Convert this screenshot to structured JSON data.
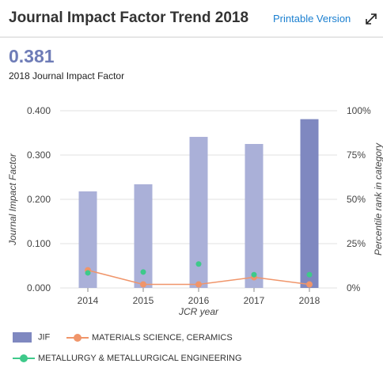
{
  "header": {
    "title": "Journal Impact Factor Trend 2018",
    "printable_label": "Printable Version",
    "expand_icon": "expand-arrows-icon"
  },
  "summary": {
    "value": "0.381",
    "label": "2018 Journal Impact Factor"
  },
  "colors": {
    "jif_bar": "#aab0d8",
    "jif_bar_current": "#7f88c0",
    "materials": "#f0956a",
    "metallurgy": "#3ec98a",
    "grid": "#e0e0e0",
    "axis_text": "#444444"
  },
  "chart_data": {
    "type": "bar",
    "title": "",
    "xlabel": "JCR year",
    "ylabel": "Journal Impact Factor",
    "y2label": "Percentile rank in category",
    "categories": [
      "2014",
      "2015",
      "2016",
      "2017",
      "2018"
    ],
    "ylim": [
      0,
      0.4
    ],
    "yticks": [
      "0.000",
      "0.100",
      "0.200",
      "0.300",
      "0.400"
    ],
    "y2lim": [
      0,
      100
    ],
    "y2ticks": [
      "0%",
      "25%",
      "50%",
      "75%",
      "100%"
    ],
    "grid": true,
    "legend_position": "bottom-left",
    "series": [
      {
        "name": "JIF",
        "kind": "bar",
        "axis": "left",
        "values": [
          0.218,
          0.234,
          0.341,
          0.325,
          0.381
        ]
      },
      {
        "name": "MATERIALS SCIENCE, CERAMICS",
        "kind": "line",
        "axis": "right",
        "values": [
          10,
          2,
          2,
          6,
          2
        ]
      },
      {
        "name": "METALLURGY & METALLURGICAL ENGINEERING",
        "kind": "scatter",
        "axis": "right",
        "values": [
          8.5,
          9,
          13.5,
          7.5,
          7.5
        ]
      }
    ]
  }
}
